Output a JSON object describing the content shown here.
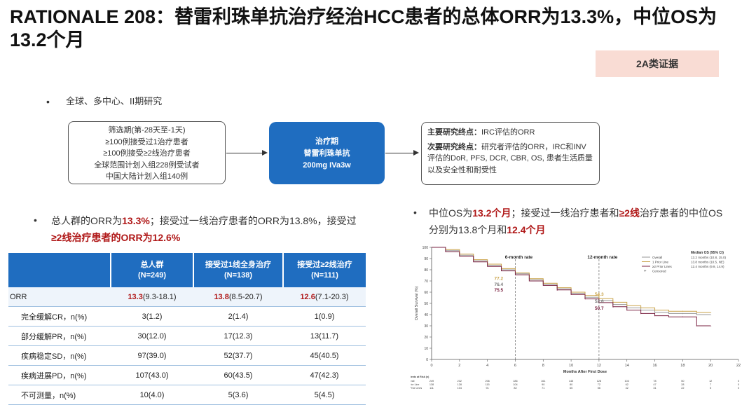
{
  "title": "RATIONALE 208：替雷利珠单抗治疗经治HCC患者的总体ORR为13.3%，中位OS为13.2个月",
  "badge": "2A类证据",
  "study_design": "全球、多中心、II期研究",
  "bullet_dot": "•",
  "screening_box": {
    "lines": [
      "筛选期(第-28天至-1天)",
      "≥100例接受过1治疗患者",
      "≥100例接受≥2线治疗患者",
      "全球范围计划入组228例受试者",
      "中国大陆计划入组140例"
    ]
  },
  "treatment_box": {
    "lines": [
      "治疗期",
      "替雷利珠单抗",
      "200mg IVa3w"
    ]
  },
  "endpoint_box": {
    "primary_label": "主要研究终点：",
    "primary_text": "IRC评估的ORR",
    "secondary_label": "次要研究终点：",
    "secondary_text": "研究者评估的ORR，IRC和INV评估的DoR, PFS, DCR, CBR, OS, 患者生活质量以及安全性和耐受性"
  },
  "orr_bullet": {
    "p1": "总人群的ORR为",
    "v1": "13.3%",
    "p2": "；接受过一线治疗患者的ORR为13.8%，接受过",
    "v2": "≥2线治疗患者的ORR为12.6%"
  },
  "os_bullet": {
    "p1": "中位OS为",
    "v1": "13.2个月",
    "p2": "；接受过一线治疗患者和",
    "v2": "≥2线",
    "p3": "治疗患者的中位OS分别为13.8个月和",
    "v3": "12.4个月"
  },
  "table": {
    "headers": [
      {
        "line1": "",
        "line2": ""
      },
      {
        "line1": "总人群",
        "line2": "(N=249)"
      },
      {
        "line1": "接受过1线全身治疗",
        "line2": "(N=138)"
      },
      {
        "line1": "接受过≥2线治疗",
        "line2": "(N=111)"
      }
    ],
    "orr_row": {
      "label": "ORR",
      "cells": [
        {
          "value": "13.3",
          "ci": "(9.3-18.1)"
        },
        {
          "value": "13.8",
          "ci": "(8.5-20.7)"
        },
        {
          "value": "12.6",
          "ci": "(7.1-20.3)"
        }
      ]
    },
    "rows": [
      {
        "label": "完全缓解CR，n(%)",
        "cells": [
          "3(1.2)",
          "2(1.4)",
          "1(0.9)"
        ]
      },
      {
        "label": "部分缓解PR，n(%)",
        "cells": [
          "30(12.0)",
          "17(12.3)",
          "13(11.7)"
        ]
      },
      {
        "label": "疾病稳定SD，n(%)",
        "cells": [
          "97(39.0)",
          "52(37.7)",
          "45(40.5)"
        ]
      },
      {
        "label": "疾病进展PD，n(%)",
        "cells": [
          "107(43.0)",
          "60(43.5)",
          "47(42.3)"
        ]
      },
      {
        "label": "不可测量，n(%)",
        "cells": [
          "10(4.0)",
          "5(3.6)",
          "5(4.5)"
        ]
      }
    ]
  },
  "km_chart": {
    "ylabel": "Overall Survival (%)",
    "xlabel": "Months After First Dose",
    "y_ticks": [
      "0",
      "10",
      "20",
      "30",
      "40",
      "50",
      "60",
      "70",
      "80",
      "90",
      "100"
    ],
    "x_ticks": [
      "0",
      "2",
      "4",
      "6",
      "8",
      "10",
      "12",
      "14",
      "16",
      "18",
      "20",
      "22"
    ],
    "label_6m": "6-month rate",
    "label_12m": "12-month rate",
    "rates_6m": [
      "77.2",
      "76.4",
      "75.5"
    ],
    "rates_12m": [
      "54.3",
      "52.6",
      "50.7"
    ],
    "legend": [
      "Overall",
      "1 Prior Line",
      "≥2 Prior Lines",
      "Censored"
    ],
    "median_title": "Median OS (95% CI)",
    "median_lines": [
      "13.2 months (10.8, 15.0)",
      "13.8 months (10.5, NE)",
      "12.4 months (9.9, 14.9)"
    ],
    "risk_title": "Patients at Risk (n)",
    "risk_labels": [
      "Overall",
      "1 Prior Line",
      "≥2 Prior Lines"
    ],
    "risk_values": [
      [
        "249",
        "232",
        "206",
        "186",
        "161",
        "145",
        "128",
        "104",
        "78",
        "50",
        "12",
        "0"
      ],
      [
        "138",
        "128",
        "115",
        "104",
        "90",
        "80",
        "72",
        "62",
        "47",
        "28",
        "7",
        "0"
      ],
      [
        "111",
        "104",
        "91",
        "82",
        "71",
        "65",
        "56",
        "42",
        "31",
        "22",
        "5",
        "0"
      ]
    ],
    "colors": {
      "overall": "#9a9a9a",
      "line1": "#c9a34a",
      "line2": "#7a2040",
      "rate6": [
        "#c9a34a",
        "#7a7a7a",
        "#7a2040"
      ]
    }
  },
  "chart_data": {
    "type": "line",
    "title": "",
    "xlabel": "Months After First Dose",
    "ylabel": "Overall Survival (%)",
    "xlim": [
      0,
      22
    ],
    "ylim": [
      0,
      100
    ],
    "series": [
      {
        "name": "Overall",
        "x": [
          0,
          1,
          2,
          3,
          4,
          5,
          6,
          7,
          8,
          9,
          10,
          11,
          12,
          13,
          14,
          15,
          16,
          17,
          18,
          19,
          20
        ],
        "y": [
          100,
          97,
          93,
          88,
          84,
          80,
          76.4,
          71,
          67,
          63,
          59,
          55.5,
          52.6,
          49,
          46,
          44,
          42,
          41,
          41,
          40,
          40
        ]
      },
      {
        "name": "1 Prior Line",
        "x": [
          0,
          1,
          2,
          3,
          4,
          5,
          6,
          7,
          8,
          9,
          10,
          11,
          12,
          13,
          14,
          15,
          16,
          17,
          18,
          19,
          20
        ],
        "y": [
          100,
          98,
          94,
          89,
          85,
          81,
          77.2,
          72,
          68,
          64,
          60,
          57,
          54.3,
          51,
          48,
          46,
          44,
          43,
          43,
          42,
          42
        ]
      },
      {
        "name": "≥2 Prior Lines",
        "x": [
          0,
          1,
          2,
          3,
          4,
          5,
          6,
          7,
          8,
          9,
          10,
          11,
          12,
          13,
          14,
          15,
          16,
          17,
          18,
          19,
          20
        ],
        "y": [
          100,
          96,
          92,
          87,
          83,
          79,
          75.5,
          70,
          66,
          62,
          58,
          54,
          50.7,
          47,
          44,
          41,
          39,
          38,
          38,
          30,
          30
        ]
      }
    ]
  }
}
